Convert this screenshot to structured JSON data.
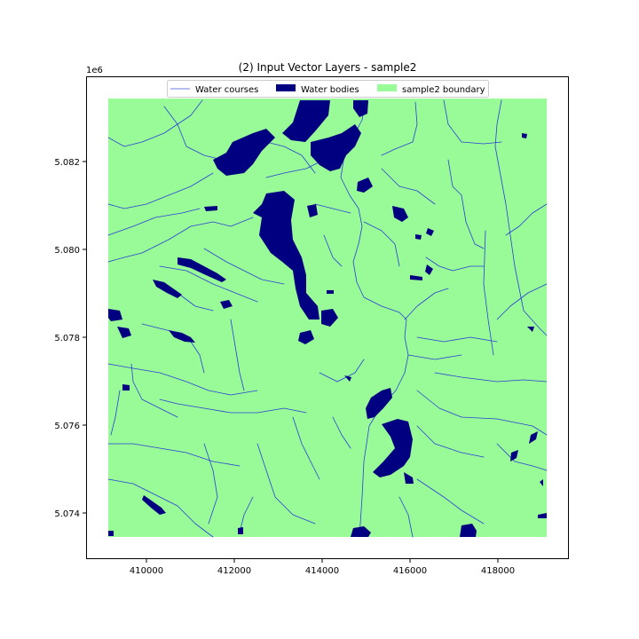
{
  "title": "(2) Input Vector Layers - sample2",
  "y_offset_label": "1e6",
  "x_ticks": [
    "410000",
    "412000",
    "414000",
    "416000",
    "418000"
  ],
  "y_ticks": [
    "5.074",
    "5.076",
    "5.078",
    "5.080",
    "5.082"
  ],
  "legend": {
    "water_courses": "Water courses",
    "water_bodies": "Water bodies",
    "boundary": "sample2 boundary"
  },
  "colors": {
    "land": "#98fb98",
    "water_body": "#000080",
    "water_course": "#2a3fd6",
    "legend_line": "#6f7fe0"
  },
  "icons": {
    "water_course_swatch": "line-icon",
    "water_body_swatch": "filled-rect-icon",
    "boundary_swatch": "filled-rect-icon"
  }
}
